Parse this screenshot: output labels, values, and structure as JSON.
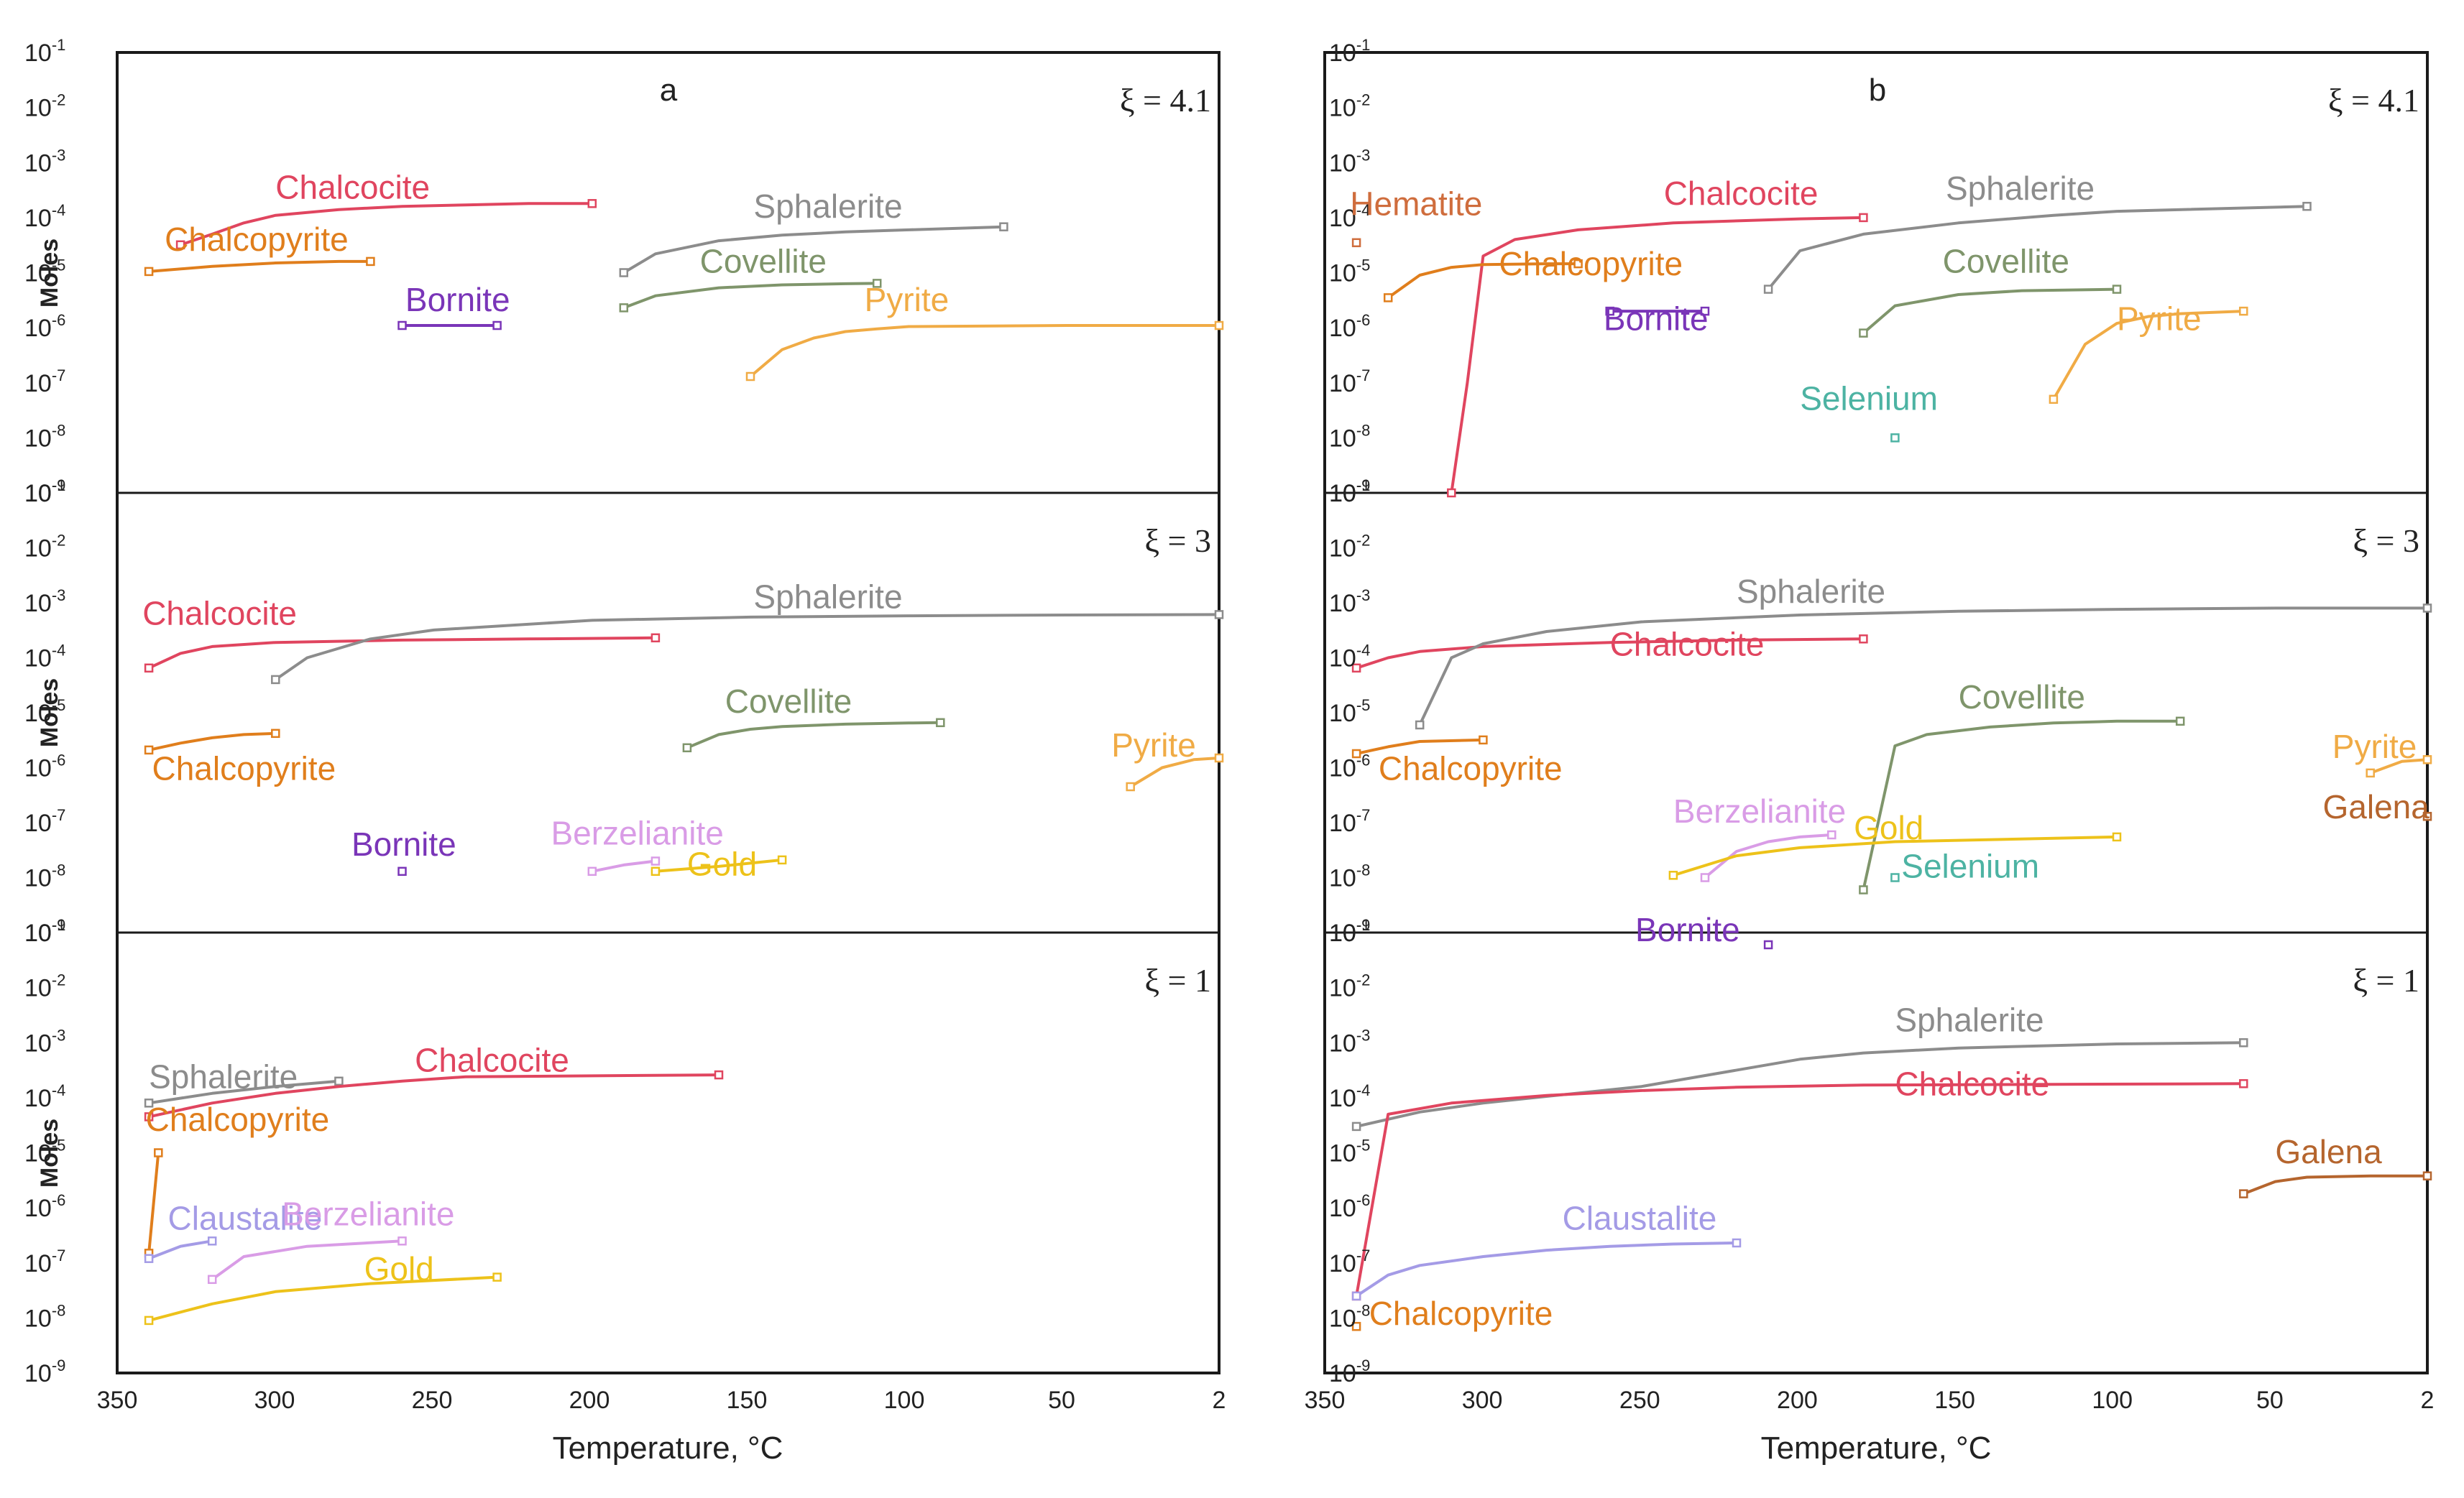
{
  "figure": {
    "xlabel": "Temperature, °C",
    "ylabel": "Moles",
    "xlim": [
      350,
      2
    ],
    "ylim_exp": [
      -9,
      -1
    ],
    "x_ticks": [
      "350",
      "300",
      "250",
      "200",
      "150",
      "100",
      "50",
      "2"
    ],
    "y_tick_base": "10",
    "y_tick_exponents": [
      "-1",
      "-2",
      "-3",
      "-4",
      "-5",
      "-6",
      "-7",
      "-8",
      "-9"
    ],
    "xi_symbol": "ξ"
  },
  "colors": {
    "Chalcocite": "#e0455f",
    "Chalcopyrite": "#e07e1c",
    "Bornite": "#7a35b8",
    "Sphalerite": "#8c8c8c",
    "Covellite": "#7f956b",
    "Pyrite": "#f0ab45",
    "Hematite": "#cf6d3d",
    "Selenium": "#4db3a3",
    "Berzelianite": "#d99ce6",
    "Gold": "#edc21a",
    "Claustalite": "#a49be6",
    "Galena": "#b5652e"
  },
  "chart_data": [
    {
      "type": "line",
      "panel": "a",
      "xi": "ξ = 4.1",
      "xlabel": "Temperature, °C",
      "ylabel": "Moles",
      "series": [
        {
          "name": "Chalcocite",
          "x": [
            330,
            320,
            310,
            300,
            280,
            260,
            240,
            220,
            200
          ],
          "y": [
            3.2e-05,
            5e-05,
            8e-05,
            0.00011,
            0.00014,
            0.00016,
            0.00017,
            0.00018,
            0.00018
          ]
        },
        {
          "name": "Chalcopyrite",
          "x": [
            340,
            320,
            300,
            280,
            270
          ],
          "y": [
            1.05e-05,
            1.3e-05,
            1.5e-05,
            1.6e-05,
            1.6e-05
          ]
        },
        {
          "name": "Bornite",
          "x": [
            260,
            230
          ],
          "y": [
            1.1e-06,
            1.1e-06
          ]
        },
        {
          "name": "Sphalerite",
          "x": [
            190,
            180,
            160,
            140,
            120,
            100,
            70
          ],
          "y": [
            1e-05,
            2.2e-05,
            3.8e-05,
            4.8e-05,
            5.5e-05,
            6e-05,
            6.8e-05
          ]
        },
        {
          "name": "Covellite",
          "x": [
            190,
            180,
            160,
            140,
            120,
            110
          ],
          "y": [
            2.3e-06,
            3.8e-06,
            5.3e-06,
            6e-06,
            6.3e-06,
            6.4e-06
          ]
        },
        {
          "name": "Pyrite",
          "x": [
            150,
            140,
            130,
            120,
            110,
            100,
            50,
            2
          ],
          "y": [
            1.3e-07,
            4e-07,
            6.5e-07,
            8.5e-07,
            9.5e-07,
            1.05e-06,
            1.1e-06,
            1.1e-06
          ]
        }
      ]
    },
    {
      "type": "line",
      "panel": "b",
      "xi": "ξ = 4.1",
      "xlabel": "Temperature, °C",
      "ylabel": "Moles",
      "series": [
        {
          "name": "Hematite",
          "x": [
            340
          ],
          "y": [
            3.5e-05
          ]
        },
        {
          "name": "Chalcocite",
          "x": [
            310,
            305,
            300,
            290,
            270,
            240,
            200,
            180
          ],
          "y": [
            1e-09,
            1e-07,
            2e-05,
            4e-05,
            6e-05,
            8e-05,
            9.5e-05,
            0.0001
          ]
        },
        {
          "name": "Chalcopyrite",
          "x": [
            330,
            320,
            310,
            300,
            280,
            270
          ],
          "y": [
            3.5e-06,
            9e-06,
            1.25e-05,
            1.4e-05,
            1.45e-05,
            1.45e-05
          ]
        },
        {
          "name": "Bornite",
          "x": [
            260,
            230
          ],
          "y": [
            2e-06,
            2e-06
          ]
        },
        {
          "name": "Sphalerite",
          "x": [
            210,
            200,
            180,
            150,
            120,
            100,
            40
          ],
          "y": [
            5e-06,
            2.5e-05,
            5e-05,
            8e-05,
            0.00011,
            0.00013,
            0.00016
          ]
        },
        {
          "name": "Covellite",
          "x": [
            180,
            170,
            150,
            130,
            100
          ],
          "y": [
            8e-07,
            2.5e-06,
            4e-06,
            4.7e-06,
            5e-06
          ]
        },
        {
          "name": "Pyrite",
          "x": [
            120,
            110,
            100,
            90,
            80,
            60
          ],
          "y": [
            5e-08,
            5e-07,
            1.2e-06,
            1.6e-06,
            1.8e-06,
            2e-06
          ]
        },
        {
          "name": "Selenium",
          "x": [
            170
          ],
          "y": [
            1e-08
          ]
        }
      ]
    },
    {
      "type": "line",
      "panel": "a",
      "xi": "ξ = 3",
      "xlabel": "Temperature, °C",
      "ylabel": "Moles",
      "series": [
        {
          "name": "Chalcocite",
          "x": [
            340,
            330,
            320,
            300,
            260,
            220,
            180
          ],
          "y": [
            6.5e-05,
            0.00012,
            0.00016,
            0.00019,
            0.00021,
            0.00022,
            0.00023
          ]
        },
        {
          "name": "Chalcopyrite",
          "x": [
            340,
            330,
            320,
            310,
            300
          ],
          "y": [
            2.1e-06,
            2.8e-06,
            3.5e-06,
            4e-06,
            4.2e-06
          ]
        },
        {
          "name": "Bornite",
          "x": [
            260
          ],
          "y": [
            1.3e-08
          ]
        },
        {
          "name": "Sphalerite",
          "x": [
            300,
            290,
            270,
            250,
            200,
            150,
            100,
            50,
            2
          ],
          "y": [
            4e-05,
            0.0001,
            0.00022,
            0.00032,
            0.00048,
            0.00055,
            0.00058,
            0.0006,
            0.00061
          ]
        },
        {
          "name": "Covellite",
          "x": [
            170,
            160,
            150,
            140,
            120,
            100,
            90
          ],
          "y": [
            2.3e-06,
            4e-06,
            5e-06,
            5.6e-06,
            6.2e-06,
            6.5e-06,
            6.6e-06
          ]
        },
        {
          "name": "Pyrite",
          "x": [
            30,
            20,
            10,
            2
          ],
          "y": [
            4.5e-07,
            1e-06,
            1.4e-06,
            1.5e-06
          ]
        },
        {
          "name": "Berzelianite",
          "x": [
            200,
            190,
            180
          ],
          "y": [
            1.3e-08,
            1.7e-08,
            2e-08
          ]
        },
        {
          "name": "Gold",
          "x": [
            180,
            160,
            140
          ],
          "y": [
            1.3e-08,
            1.6e-08,
            2.1e-08
          ]
        }
      ]
    },
    {
      "type": "line",
      "panel": "b",
      "xi": "ξ = 3",
      "xlabel": "Temperature, °C",
      "ylabel": "Moles",
      "series": [
        {
          "name": "Chalcocite",
          "x": [
            340,
            330,
            320,
            300,
            260,
            220,
            180
          ],
          "y": [
            6.5e-05,
            0.0001,
            0.00013,
            0.00016,
            0.00019,
            0.00021,
            0.00022
          ]
        },
        {
          "name": "Chalcopyrite",
          "x": [
            340,
            330,
            320,
            300
          ],
          "y": [
            1.8e-06,
            2.4e-06,
            3e-06,
            3.2e-06
          ]
        },
        {
          "name": "Bornite",
          "x": [
            210
          ],
          "y": [
            6e-10
          ]
        },
        {
          "name": "Sphalerite",
          "x": [
            320,
            310,
            300,
            280,
            250,
            200,
            150,
            100,
            50,
            2
          ],
          "y": [
            6e-06,
            0.0001,
            0.00018,
            0.0003,
            0.00045,
            0.0006,
            0.0007,
            0.00076,
            0.0008,
            0.0008
          ]
        },
        {
          "name": "Covellite",
          "x": [
            180,
            170,
            160,
            140,
            120,
            100,
            80
          ],
          "y": [
            6e-09,
            2.5e-06,
            4e-06,
            5.5e-06,
            6.5e-06,
            7e-06,
            7e-06
          ]
        },
        {
          "name": "Pyrite",
          "x": [
            20,
            10,
            2
          ],
          "y": [
            8e-07,
            1.3e-06,
            1.4e-06
          ]
        },
        {
          "name": "Galena",
          "x": [
            2
          ],
          "y": [
            1.3e-07
          ]
        },
        {
          "name": "Berzelianite",
          "x": [
            230,
            220,
            210,
            200,
            190
          ],
          "y": [
            1e-08,
            3e-08,
            4.5e-08,
            5.5e-08,
            6e-08
          ]
        },
        {
          "name": "Gold",
          "x": [
            240,
            220,
            200,
            170,
            100
          ],
          "y": [
            1.1e-08,
            2.5e-08,
            3.5e-08,
            4.5e-08,
            5.5e-08
          ]
        },
        {
          "name": "Selenium",
          "x": [
            170
          ],
          "y": [
            1e-08
          ]
        }
      ]
    },
    {
      "type": "line",
      "panel": "a",
      "xi": "ξ = 1",
      "xlabel": "Temperature, °C",
      "ylabel": "Moles",
      "series": [
        {
          "name": "Sphalerite",
          "x": [
            340,
            320,
            300,
            280
          ],
          "y": [
            8e-05,
            0.00012,
            0.00016,
            0.0002
          ]
        },
        {
          "name": "Chalcocite",
          "x": [
            340,
            320,
            300,
            280,
            260,
            240,
            200,
            160
          ],
          "y": [
            4.5e-05,
            8e-05,
            0.00012,
            0.00016,
            0.0002,
            0.00024,
            0.00025,
            0.00026
          ]
        },
        {
          "name": "Chalcopyrite",
          "x": [
            340,
            337
          ],
          "y": [
            1.5e-07,
            1e-05
          ]
        },
        {
          "name": "Claustalite",
          "x": [
            340,
            330,
            320
          ],
          "y": [
            1.2e-07,
            2e-07,
            2.5e-07
          ]
        },
        {
          "name": "Berzelianite",
          "x": [
            320,
            310,
            290,
            260
          ],
          "y": [
            5e-08,
            1.3e-07,
            2e-07,
            2.5e-07
          ]
        },
        {
          "name": "Gold",
          "x": [
            340,
            320,
            300,
            270,
            230
          ],
          "y": [
            9e-09,
            1.8e-08,
            3e-08,
            4.2e-08,
            5.5e-08
          ]
        }
      ]
    },
    {
      "type": "line",
      "panel": "b",
      "xi": "ξ = 1",
      "xlabel": "Temperature, °C",
      "ylabel": "Moles",
      "series": [
        {
          "name": "Sphalerite",
          "x": [
            340,
            320,
            300,
            250,
            200,
            180,
            150,
            100,
            60
          ],
          "y": [
            3e-05,
            5.5e-05,
            8e-05,
            0.00016,
            0.0005,
            0.00065,
            0.0008,
            0.00095,
            0.001
          ]
        },
        {
          "name": "Chalcocite",
          "x": [
            340,
            330,
            310,
            280,
            250,
            220,
            180,
            120,
            60
          ],
          "y": [
            2.5e-08,
            5e-05,
            8e-05,
            0.00011,
            0.000135,
            0.000155,
            0.00017,
            0.000175,
            0.00018
          ]
        },
        {
          "name": "Claustalite",
          "x": [
            340,
            330,
            320,
            300,
            280,
            260,
            240,
            220
          ],
          "y": [
            2.5e-08,
            6e-08,
            9e-08,
            1.3e-07,
            1.7e-07,
            2e-07,
            2.2e-07,
            2.3e-07
          ]
        },
        {
          "name": "Chalcopyrite",
          "x": [
            340
          ],
          "y": [
            7e-09
          ]
        },
        {
          "name": "Galena",
          "x": [
            60,
            50,
            40,
            20,
            2
          ],
          "y": [
            1.8e-06,
            3e-06,
            3.6e-06,
            3.8e-06,
            3.8e-06
          ]
        }
      ]
    }
  ],
  "labels": [
    {
      "text": "Chalcocite",
      "color": "Chalcocite",
      "panel": 0,
      "x": 300,
      "y": 0.00022
    },
    {
      "text": "Chalcopyrite",
      "color": "Chalcopyrite",
      "panel": 0,
      "x": 335,
      "y": 2.5e-05
    },
    {
      "text": "Bornite",
      "color": "Bornite",
      "panel": 0,
      "x": 259,
      "y": 2e-06
    },
    {
      "text": "Sphalerite",
      "color": "Sphalerite",
      "panel": 0,
      "x": 149,
      "y": 0.0001
    },
    {
      "text": "Covellite",
      "color": "Covellite",
      "panel": 0,
      "x": 166,
      "y": 1e-05
    },
    {
      "text": "Pyrite",
      "color": "Pyrite",
      "panel": 0,
      "x": 114,
      "y": 2e-06
    },
    {
      "text": "Hematite",
      "color": "Hematite",
      "panel": 1,
      "x": 342,
      "y": 0.00011
    },
    {
      "text": "Chalcocite",
      "color": "Chalcocite",
      "panel": 1,
      "x": 243,
      "y": 0.00017
    },
    {
      "text": "Chalcopyrite",
      "color": "Chalcopyrite",
      "panel": 1,
      "x": 295,
      "y": 9e-06
    },
    {
      "text": "Bornite",
      "color": "Bornite",
      "panel": 1,
      "x": 262,
      "y": 9e-07
    },
    {
      "text": "Sphalerite",
      "color": "Sphalerite",
      "panel": 1,
      "x": 154,
      "y": 0.00021
    },
    {
      "text": "Covellite",
      "color": "Covellite",
      "panel": 1,
      "x": 155,
      "y": 1e-05
    },
    {
      "text": "Pyrite",
      "color": "Pyrite",
      "panel": 1,
      "x": 100,
      "y": 9e-07
    },
    {
      "text": "Selenium",
      "color": "Selenium",
      "panel": 1,
      "x": 200,
      "y": 3.2e-08
    },
    {
      "text": "Chalcocite",
      "color": "Chalcocite",
      "panel": 2,
      "x": 342,
      "y": 0.0004
    },
    {
      "text": "Chalcopyrite",
      "color": "Chalcopyrite",
      "panel": 2,
      "x": 339,
      "y": 6e-07
    },
    {
      "text": "Bornite",
      "color": "Bornite",
      "panel": 2,
      "x": 276,
      "y": 2.5e-08
    },
    {
      "text": "Sphalerite",
      "color": "Sphalerite",
      "panel": 2,
      "x": 149,
      "y": 0.0008
    },
    {
      "text": "Covellite",
      "color": "Covellite",
      "panel": 2,
      "x": 158,
      "y": 1e-05
    },
    {
      "text": "Pyrite",
      "color": "Pyrite",
      "panel": 2,
      "x": 36,
      "y": 1.6e-06
    },
    {
      "text": "Berzelianite",
      "color": "Berzelianite",
      "panel": 2,
      "x": 213,
      "y": 4e-08
    },
    {
      "text": "Gold",
      "color": "Gold",
      "panel": 2,
      "x": 170,
      "y": 1.1e-08
    },
    {
      "text": "Sphalerite",
      "color": "Sphalerite",
      "panel": 3,
      "x": 220,
      "y": 0.001
    },
    {
      "text": "Chalcocite",
      "color": "Chalcocite",
      "panel": 3,
      "x": 260,
      "y": 0.00011
    },
    {
      "text": "Chalcopyrite",
      "color": "Chalcopyrite",
      "panel": 3,
      "x": 333,
      "y": 6e-07
    },
    {
      "text": "Covellite",
      "color": "Covellite",
      "panel": 3,
      "x": 150,
      "y": 1.2e-05
    },
    {
      "text": "Pyrite",
      "color": "Pyrite",
      "panel": 3,
      "x": 32,
      "y": 1.5e-06
    },
    {
      "text": "Galena",
      "color": "Galena",
      "panel": 3,
      "x": 35,
      "y": 1.2e-07
    },
    {
      "text": "Berzelianite",
      "color": "Berzelianite",
      "panel": 3,
      "x": 240,
      "y": 1e-07
    },
    {
      "text": "Gold",
      "color": "Gold",
      "panel": 3,
      "x": 183,
      "y": 5e-08
    },
    {
      "text": "Selenium",
      "color": "Selenium",
      "panel": 3,
      "x": 168,
      "y": 1e-08
    },
    {
      "text": "Bornite",
      "color": "Bornite",
      "panel": 3,
      "x": 252,
      "y": 7e-10
    },
    {
      "text": "Sphalerite",
      "color": "Sphalerite",
      "panel": 4,
      "x": 340,
      "y": 0.00015
    },
    {
      "text": "Chalcocite",
      "color": "Chalcocite",
      "panel": 4,
      "x": 256,
      "y": 0.0003
    },
    {
      "text": "Chalcopyrite",
      "color": "Chalcopyrite",
      "panel": 4,
      "x": 341,
      "y": 2.5e-05
    },
    {
      "text": "Claustalite",
      "color": "Claustalite",
      "panel": 4,
      "x": 334,
      "y": 4e-07
    },
    {
      "text": "Berzelianite",
      "color": "Berzelianite",
      "panel": 4,
      "x": 298,
      "y": 4.8e-07
    },
    {
      "text": "Gold",
      "color": "Gold",
      "panel": 4,
      "x": 272,
      "y": 4.8e-08
    },
    {
      "text": "Sphalerite",
      "color": "Sphalerite",
      "panel": 5,
      "x": 170,
      "y": 0.0016
    },
    {
      "text": "Chalcocite",
      "color": "Chalcocite",
      "panel": 5,
      "x": 170,
      "y": 0.00011
    },
    {
      "text": "Galena",
      "color": "Galena",
      "panel": 5,
      "x": 50,
      "y": 6.5e-06
    },
    {
      "text": "Claustalite",
      "color": "Claustalite",
      "panel": 5,
      "x": 275,
      "y": 4e-07
    },
    {
      "text": "Chalcopyrite",
      "color": "Chalcopyrite",
      "panel": 5,
      "x": 336,
      "y": 7.5e-09
    }
  ]
}
